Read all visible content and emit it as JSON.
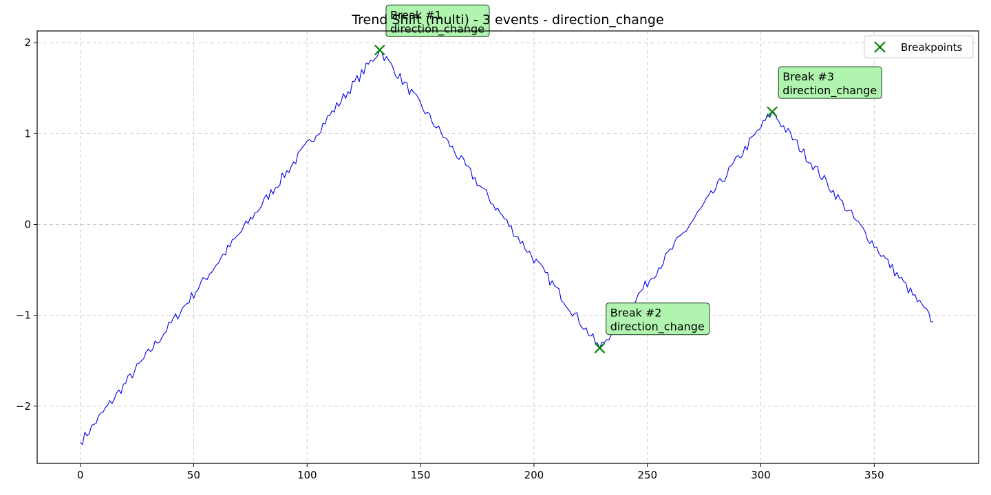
{
  "chart_data": {
    "type": "line",
    "title": "Trend Shift (multi) - 3 events - direction_change",
    "xlabel": "",
    "ylabel": "",
    "xlim": [
      -19,
      396
    ],
    "ylim": [
      -2.63,
      2.13
    ],
    "xticks": [
      0,
      50,
      100,
      150,
      200,
      250,
      300,
      350
    ],
    "yticks": [
      -2,
      -1,
      0,
      1,
      2
    ],
    "ytick_labels": [
      "−2",
      "−1",
      "0",
      "1",
      "2"
    ],
    "grid": true,
    "legend": {
      "placement": "top-right",
      "entries": [
        "Breakpoints"
      ]
    },
    "colors": {
      "line": "#0000ee",
      "marker": "#008000",
      "annotation_fill": "#b0f4b0",
      "grid": "#cccccc"
    },
    "series": [
      {
        "knots": [
          [
            0,
            -2.4
          ],
          [
            132,
            1.92
          ],
          [
            229,
            -1.36
          ],
          [
            305,
            1.24
          ],
          [
            376,
            -1.07
          ]
        ],
        "noise": 0.035
      }
    ],
    "breakpoints": [
      {
        "x": 132,
        "y": 1.92,
        "label_line1": "Break #1",
        "label_line2": "direction_change",
        "label_dx": 4,
        "label_dy": 0.17
      },
      {
        "x": 229,
        "y": -1.36,
        "label_line1": "Break #2",
        "label_line2": "direction_change",
        "label_dx": 4,
        "label_dy": 0.17
      },
      {
        "x": 305,
        "y": 1.24,
        "label_line1": "Break #3",
        "label_line2": "direction_change",
        "label_dx": 4,
        "label_dy": 0.17
      }
    ]
  }
}
